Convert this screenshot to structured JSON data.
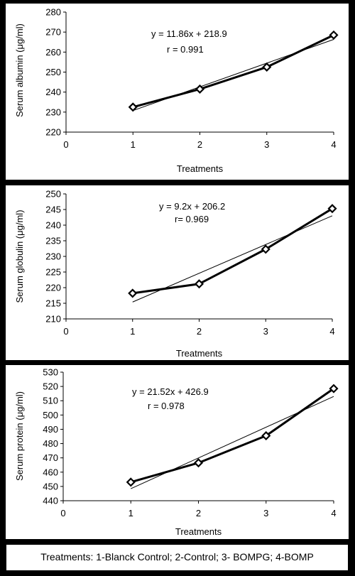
{
  "chart_data": [
    {
      "type": "scatter",
      "title": "",
      "xlabel": "Treatments",
      "ylabel": "Serum albumin (μg/ml)",
      "xlim": [
        0,
        4
      ],
      "ylim": [
        220,
        280
      ],
      "xticks": [
        "0",
        "1",
        "2",
        "3",
        "4"
      ],
      "yticks": [
        "220",
        "230",
        "240",
        "250",
        "260",
        "270",
        "280"
      ],
      "x": [
        1,
        2,
        3,
        4
      ],
      "y": [
        232.5,
        241.5,
        252.5,
        268.5
      ],
      "trendline": {
        "slope": 11.86,
        "intercept": 218.9
      },
      "annotation": [
        "y = 11.86x + 218.9",
        "r = 0.991"
      ],
      "grid": false
    },
    {
      "type": "scatter",
      "title": "",
      "xlabel": "Treatments",
      "ylabel": "Serum globulin (μg/ml)",
      "xlim": [
        0,
        4
      ],
      "ylim": [
        210,
        250
      ],
      "xticks": [
        "0",
        "1",
        "2",
        "3",
        "4"
      ],
      "yticks": [
        "210",
        "215",
        "220",
        "225",
        "230",
        "235",
        "240",
        "245",
        "250"
      ],
      "x": [
        1,
        2,
        3,
        4
      ],
      "y": [
        218.2,
        221.2,
        232.3,
        245.3
      ],
      "trendline": {
        "slope": 9.2,
        "intercept": 206.2
      },
      "annotation": [
        "y = 9.2x + 206.2",
        "r= 0.969"
      ],
      "grid": false
    },
    {
      "type": "scatter",
      "title": "",
      "xlabel": "Treatments",
      "ylabel": "Serum protein (μg/ml)",
      "xlim": [
        0,
        4
      ],
      "ylim": [
        440,
        530
      ],
      "xticks": [
        "0",
        "1",
        "2",
        "3",
        "4"
      ],
      "yticks": [
        "440",
        "450",
        "460",
        "470",
        "480",
        "490",
        "500",
        "510",
        "520",
        "530"
      ],
      "x": [
        1,
        2,
        3,
        4
      ],
      "y": [
        453,
        466.5,
        485.5,
        518.5
      ],
      "trendline": {
        "slope": 21.52,
        "intercept": 426.9
      },
      "annotation": [
        "y = 21.52x + 426.9",
        "r = 0.978"
      ],
      "grid": false
    }
  ],
  "legend": {
    "text": "Treatments: 1-Blanck Control; 2-Control; 3- BOMPG; 4-BOMP"
  },
  "colors": {
    "line": "#000000",
    "background": "#000000",
    "panel": "#ffffff"
  }
}
